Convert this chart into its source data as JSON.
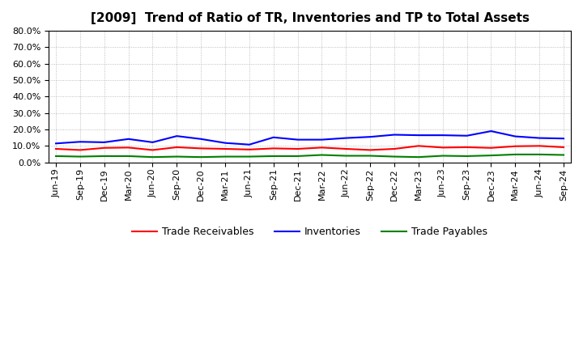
{
  "title": "[2009]  Trend of Ratio of TR, Inventories and TP to Total Assets",
  "x_labels": [
    "Jun-19",
    "Sep-19",
    "Dec-19",
    "Mar-20",
    "Jun-20",
    "Sep-20",
    "Dec-20",
    "Mar-21",
    "Jun-21",
    "Sep-21",
    "Dec-21",
    "Mar-22",
    "Jun-22",
    "Sep-22",
    "Dec-22",
    "Mar-23",
    "Jun-23",
    "Sep-23",
    "Dec-23",
    "Mar-24",
    "Jun-24",
    "Sep-24"
  ],
  "trade_receivables": [
    0.082,
    0.075,
    0.088,
    0.09,
    0.075,
    0.092,
    0.085,
    0.082,
    0.078,
    0.085,
    0.082,
    0.09,
    0.082,
    0.075,
    0.082,
    0.1,
    0.09,
    0.092,
    0.088,
    0.098,
    0.1,
    0.092
  ],
  "inventories": [
    0.115,
    0.125,
    0.122,
    0.142,
    0.122,
    0.16,
    0.142,
    0.118,
    0.108,
    0.152,
    0.138,
    0.138,
    0.148,
    0.155,
    0.168,
    0.165,
    0.165,
    0.162,
    0.19,
    0.158,
    0.148,
    0.145
  ],
  "trade_payables": [
    0.038,
    0.035,
    0.038,
    0.038,
    0.032,
    0.035,
    0.032,
    0.035,
    0.035,
    0.038,
    0.038,
    0.045,
    0.04,
    0.04,
    0.035,
    0.032,
    0.04,
    0.038,
    0.042,
    0.048,
    0.048,
    0.045
  ],
  "color_tr": "#FF0000",
  "color_inv": "#0000FF",
  "color_tp": "#008000",
  "ylim": [
    0.0,
    0.8
  ],
  "yticks": [
    0.0,
    0.1,
    0.2,
    0.3,
    0.4,
    0.5,
    0.6,
    0.7,
    0.8
  ],
  "background_color": "#FFFFFF",
  "grid_color": "#999999",
  "legend_tr": "Trade Receivables",
  "legend_inv": "Inventories",
  "legend_tp": "Trade Payables",
  "title_fontsize": 11,
  "tick_fontsize": 8
}
